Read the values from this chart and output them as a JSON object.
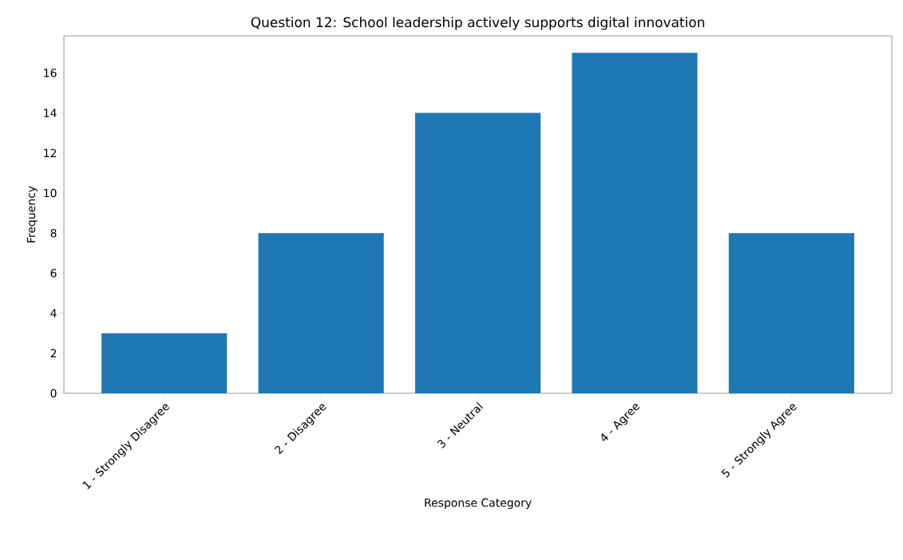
{
  "chart_data": {
    "type": "bar",
    "title": "Question 12: School leadership actively supports digital innovation",
    "xlabel": "Response Category",
    "ylabel": "Frequency",
    "categories": [
      "1 - Strongly Disagree",
      "2 - Disagree",
      "3 - Neutral",
      "4 - Agree",
      "5 - Strongly Agree"
    ],
    "values": [
      3,
      8,
      14,
      17,
      8
    ],
    "color": "#1f77b4",
    "ylim": [
      0,
      17.85
    ],
    "yticks": [
      0,
      2,
      4,
      6,
      8,
      10,
      12,
      14,
      16
    ]
  }
}
